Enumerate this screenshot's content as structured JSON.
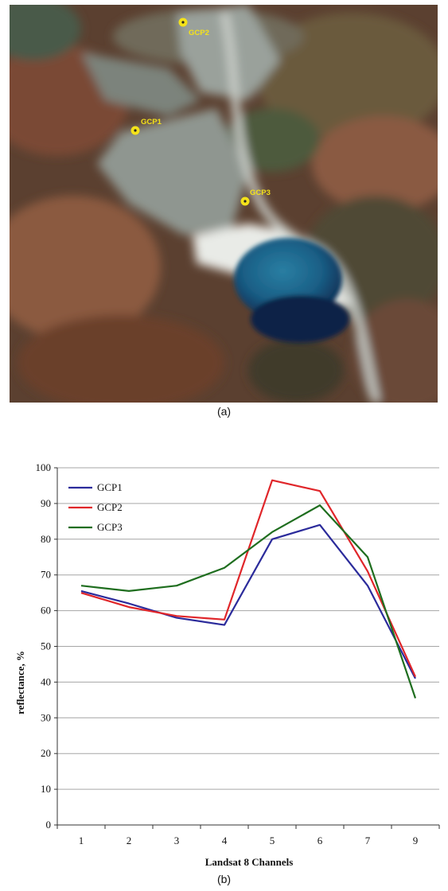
{
  "panel_a": {
    "caption": "(a)",
    "markers": [
      "GCP1",
      "GCP2",
      "GCP3"
    ]
  },
  "panel_b": {
    "caption": "(b)"
  },
  "chart_data": {
    "type": "line",
    "xlabel": "Landsat 8 Channels",
    "ylabel": "reflectance, %",
    "categories": [
      "1",
      "2",
      "3",
      "4",
      "5",
      "6",
      "7",
      "9"
    ],
    "ylim": [
      0,
      100
    ],
    "yticks": [
      0,
      10,
      20,
      30,
      40,
      50,
      60,
      70,
      80,
      90,
      100
    ],
    "grid": true,
    "legend_position": "top-left",
    "series": [
      {
        "name": "GCP1",
        "color": "#2b2b9b",
        "values": [
          65.5,
          62,
          58,
          56,
          80,
          84,
          67,
          41
        ]
      },
      {
        "name": "GCP2",
        "color": "#e0262a",
        "values": [
          65,
          61,
          58.5,
          57.5,
          96.5,
          93.5,
          71,
          41.5
        ]
      },
      {
        "name": "GCP3",
        "color": "#1f6e1f",
        "values": [
          67,
          65.5,
          67,
          72,
          82,
          89.5,
          75,
          35.5
        ]
      }
    ]
  }
}
